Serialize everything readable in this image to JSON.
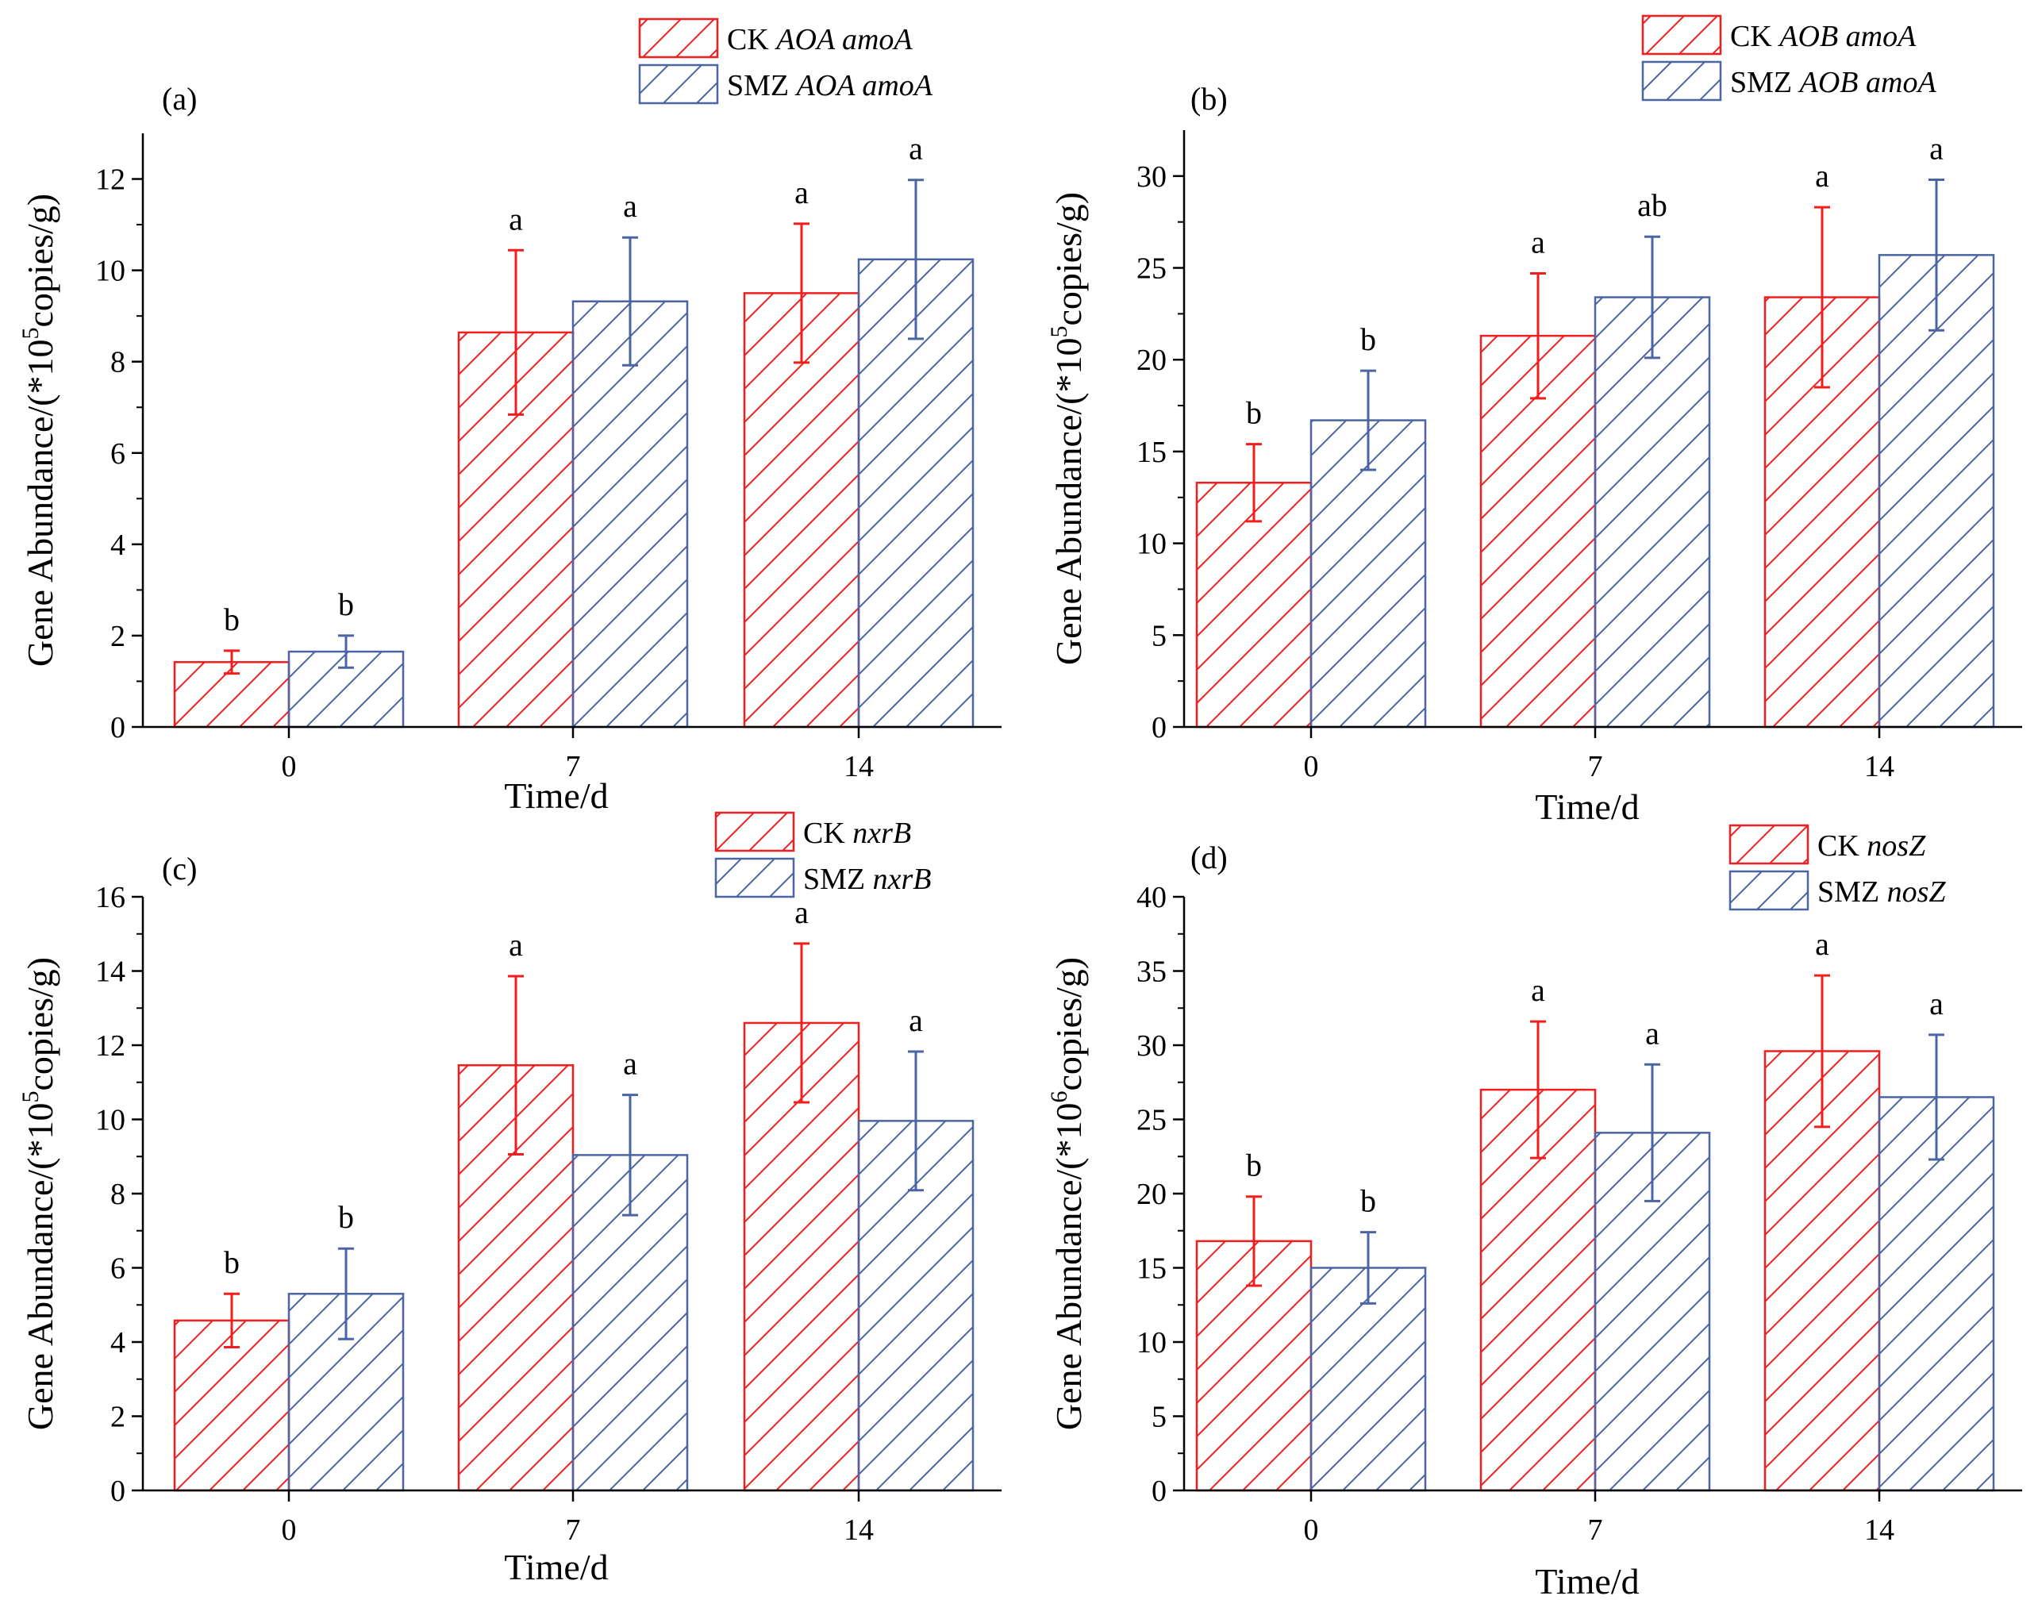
{
  "figure": {
    "ck_color": "#f21d1d",
    "smz_color": "#4a64a4",
    "axis_color": "#000000"
  },
  "chart_data": [
    {
      "type": "bar",
      "panel_label": "(a)",
      "xlabel": "Time/d",
      "ylabel_prefix": "Gene Abundance/(*10",
      "ylabel_exponent": "5",
      "ylabel_suffix": "copies/g)",
      "categories": [
        "0",
        "7",
        "14"
      ],
      "ylim": [
        0,
        13
      ],
      "yticks": [
        0,
        2,
        4,
        6,
        8,
        10,
        12
      ],
      "legend_position": "top-right",
      "series": [
        {
          "key": "ck",
          "name_plain": "CK ",
          "name_italic": "AOA amoA",
          "values": [
            1.42,
            8.64,
            9.5
          ],
          "errors": [
            0.25,
            1.8,
            1.52
          ],
          "labels": [
            "b",
            "a",
            "a"
          ]
        },
        {
          "key": "smz",
          "name_plain": "SMZ ",
          "name_italic": "AOA amoA",
          "values": [
            1.65,
            9.32,
            10.24
          ],
          "errors": [
            0.35,
            1.4,
            1.74
          ],
          "labels": [
            "b",
            "a",
            "a"
          ]
        }
      ]
    },
    {
      "type": "bar",
      "panel_label": "(b)",
      "xlabel": "Time/d",
      "ylabel_prefix": "Gene Abundance/(*10",
      "ylabel_exponent": "5",
      "ylabel_suffix": "copies/g)",
      "categories": [
        "0",
        "7",
        "14"
      ],
      "ylim": [
        0,
        32.5
      ],
      "yticks": [
        0,
        5,
        10,
        15,
        20,
        25,
        30
      ],
      "legend_position": "top-right",
      "series": [
        {
          "key": "ck",
          "name_plain": "CK ",
          "name_italic": "AOB amoA",
          "values": [
            13.3,
            21.3,
            23.4
          ],
          "errors": [
            2.1,
            3.4,
            4.9
          ],
          "labels": [
            "b",
            "a",
            "a"
          ]
        },
        {
          "key": "smz",
          "name_plain": "SMZ ",
          "name_italic": "AOB amoA",
          "values": [
            16.7,
            23.4,
            25.7
          ],
          "errors": [
            2.7,
            3.3,
            4.1
          ],
          "labels": [
            "b",
            "ab",
            "a"
          ]
        }
      ]
    },
    {
      "type": "bar",
      "panel_label": "(c)",
      "xlabel": "Time/d",
      "ylabel_prefix": "Gene Abundance/(*10",
      "ylabel_exponent": "5",
      "ylabel_suffix": "copies/g)",
      "categories": [
        "0",
        "7",
        "14"
      ],
      "ylim": [
        0,
        16
      ],
      "yticks": [
        0,
        2,
        4,
        6,
        8,
        10,
        12,
        14,
        16
      ],
      "legend_position": "top-right",
      "series": [
        {
          "key": "ck",
          "name_plain": "CK ",
          "name_italic": "nxrB",
          "values": [
            4.58,
            11.46,
            12.6
          ],
          "errors": [
            0.72,
            2.4,
            2.14
          ],
          "labels": [
            "b",
            "a",
            "a"
          ]
        },
        {
          "key": "smz",
          "name_plain": "SMZ ",
          "name_italic": "nxrB",
          "values": [
            5.3,
            9.04,
            9.96
          ],
          "errors": [
            1.22,
            1.62,
            1.87
          ],
          "labels": [
            "b",
            "a",
            "a"
          ]
        }
      ]
    },
    {
      "type": "bar",
      "panel_label": "(d)",
      "xlabel": "Time/d",
      "ylabel_prefix": "Gene Abundance/(*10",
      "ylabel_exponent": "6",
      "ylabel_suffix": "copies/g)",
      "categories": [
        "0",
        "7",
        "14"
      ],
      "ylim": [
        0,
        40
      ],
      "yticks": [
        0,
        5,
        10,
        15,
        20,
        25,
        30,
        35,
        40
      ],
      "legend_position": "top-right",
      "series": [
        {
          "key": "ck",
          "name_plain": "CK ",
          "name_italic": "nosZ",
          "values": [
            16.8,
            27.0,
            29.6
          ],
          "errors": [
            3.0,
            4.6,
            5.1
          ],
          "labels": [
            "b",
            "a",
            "a"
          ]
        },
        {
          "key": "smz",
          "name_plain": "SMZ ",
          "name_italic": "nosZ",
          "values": [
            15.0,
            24.1,
            26.5
          ],
          "errors": [
            2.4,
            4.6,
            4.2
          ],
          "labels": [
            "b",
            "a",
            "a"
          ]
        }
      ]
    }
  ]
}
